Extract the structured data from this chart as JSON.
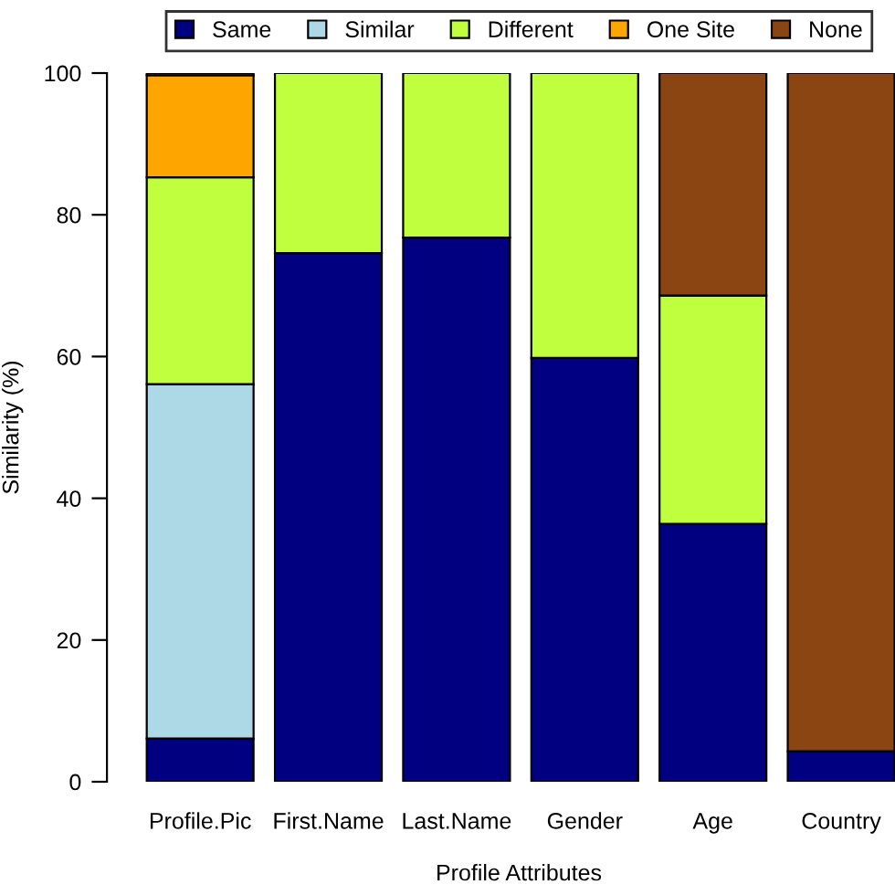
{
  "chart_data": {
    "type": "bar",
    "stacked": true,
    "xlabel": "Profile Attributes",
    "ylabel": "Similarity (%)",
    "categories": [
      "Profile.Pic",
      "First.Name",
      "Last.Name",
      "Gender",
      "Age",
      "Country"
    ],
    "series": [
      {
        "name": "Same",
        "color": "#000080",
        "values": [
          6.1,
          74.6,
          76.8,
          59.8,
          36.4,
          4.3
        ]
      },
      {
        "name": "Similar",
        "color": "#add8e6",
        "values": [
          50.0,
          null,
          null,
          null,
          null,
          null
        ]
      },
      {
        "name": "Different",
        "color": "#c0ff3e",
        "values": [
          29.2,
          25.4,
          23.2,
          40.2,
          32.2,
          null
        ]
      },
      {
        "name": "One Site",
        "color": "#ffa500",
        "values": [
          14.4,
          null,
          null,
          null,
          null,
          null
        ]
      },
      {
        "name": "None",
        "color": "#8b4513",
        "values": [
          0.3,
          null,
          null,
          null,
          31.4,
          95.7
        ]
      }
    ],
    "ylim": [
      0,
      100
    ],
    "yticks": [
      0,
      20,
      40,
      60,
      80,
      100
    ],
    "grid": false,
    "legend": "top"
  }
}
